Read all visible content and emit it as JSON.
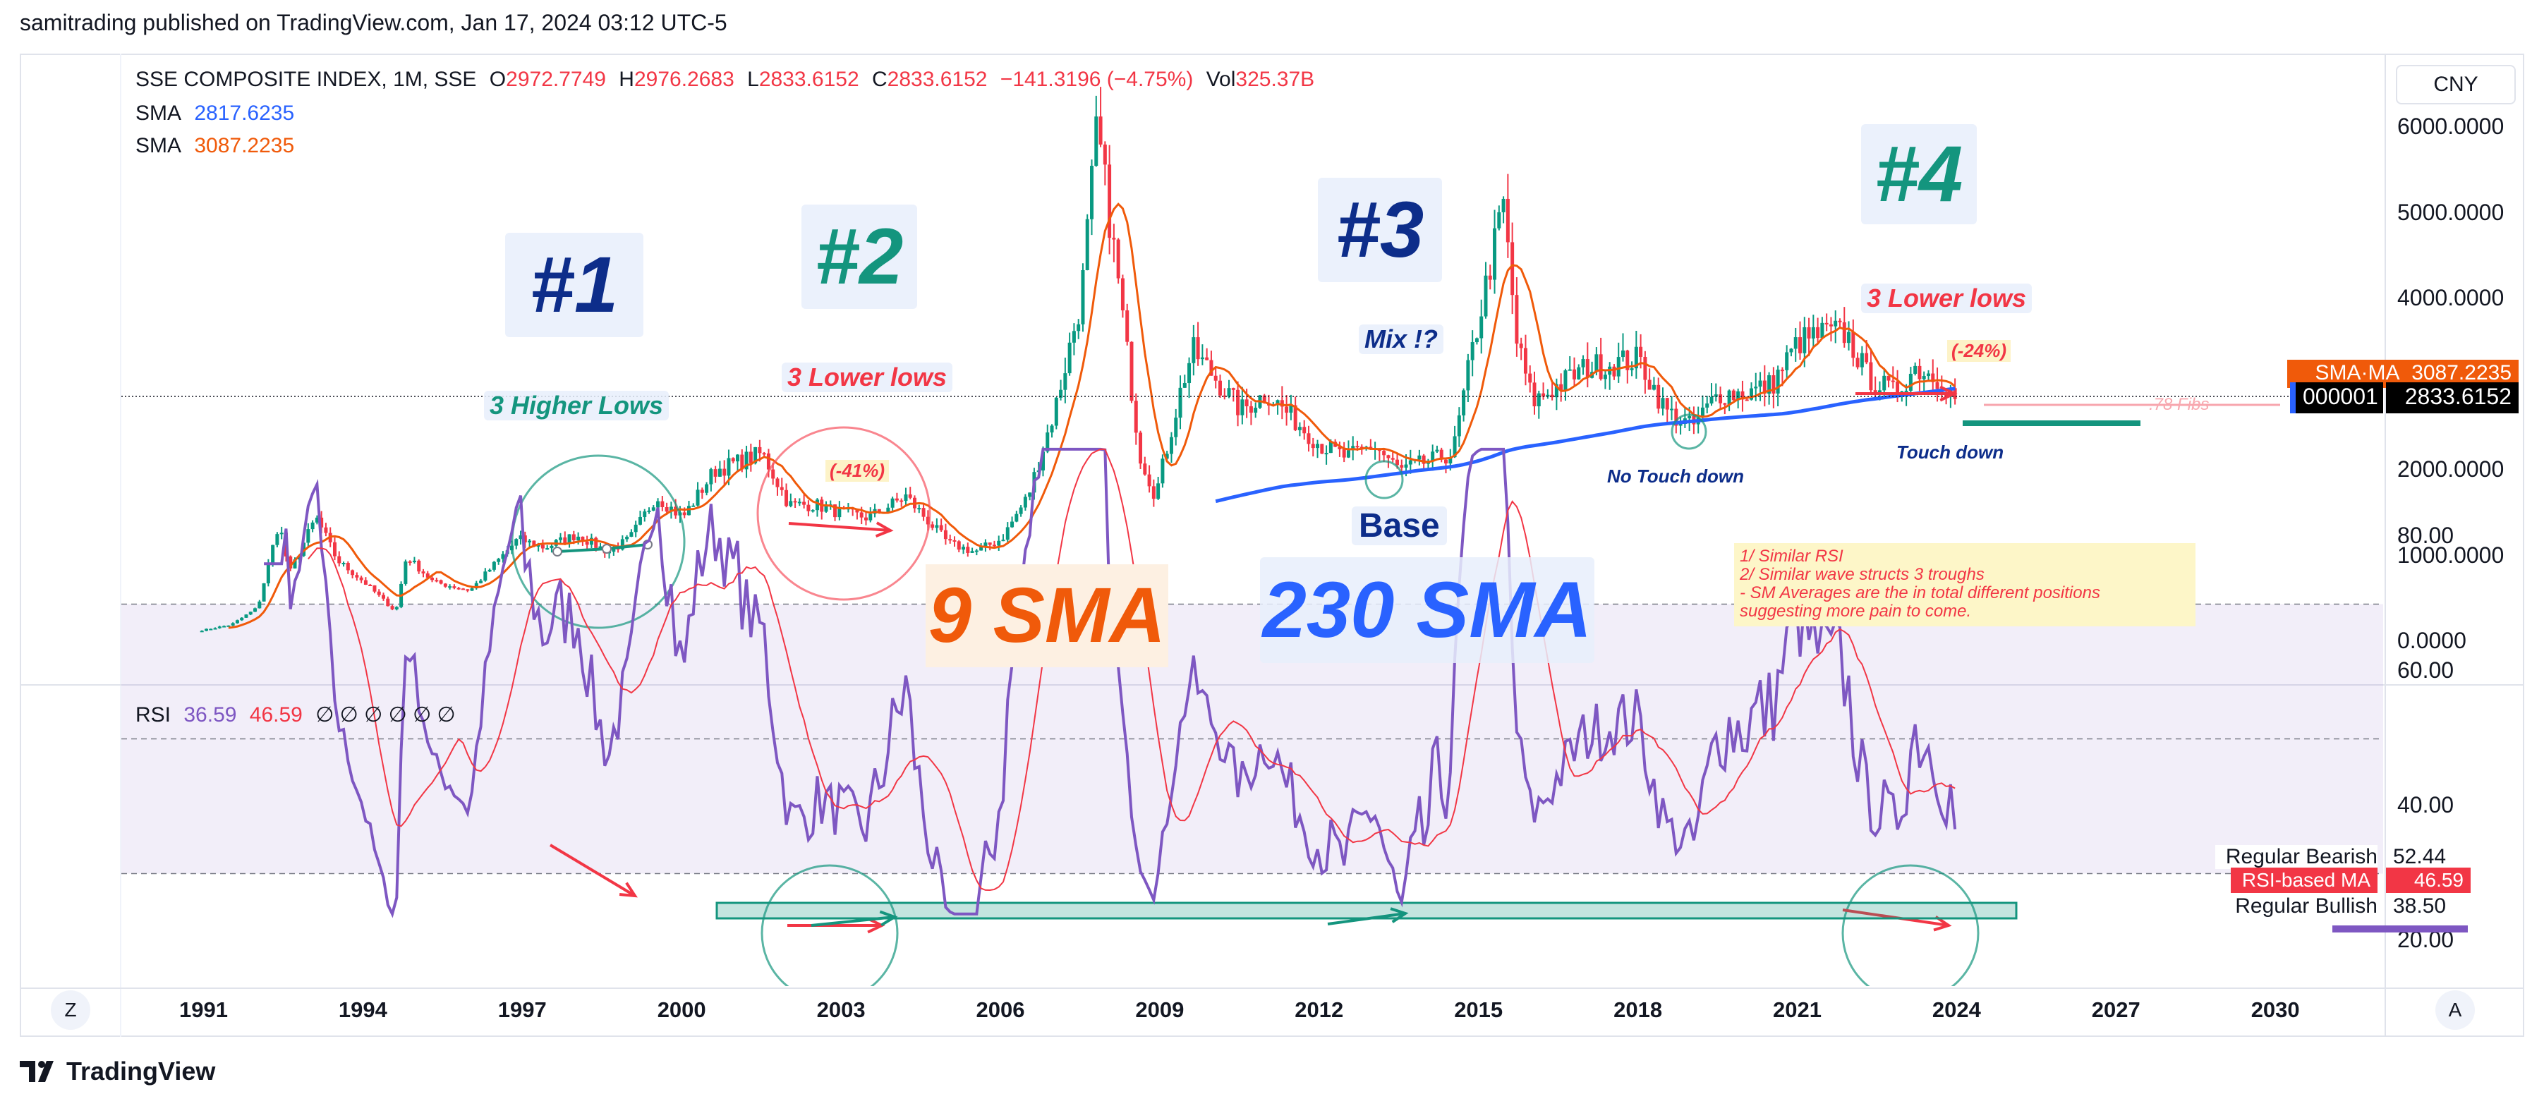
{
  "published": "samitrading published on TradingView.com, Jan 17, 2024 03:12 UTC-5",
  "legend": {
    "symbol": "SSE COMPOSITE INDEX, 1M, SSE",
    "open_label": "O",
    "open": "2972.7749",
    "high_label": "H",
    "high": "2976.2683",
    "low_label": "L",
    "low": "2833.6152",
    "close_label": "C",
    "close": "2833.6152",
    "change": "−141.3196 (−4.75%)",
    "vol_label": "Vol",
    "vol": "325.37B",
    "sma1_label": "SMA",
    "sma1_value": "2817.6235",
    "sma2_label": "SMA",
    "sma2_value": "3087.2235",
    "rsi_label": "RSI",
    "rsi_value": "36.59",
    "rsi_ma_value": "46.59",
    "rsi_extra": "∅ ∅ ∅ ∅ ∅ ∅"
  },
  "currency": "CNY",
  "price_axis": [
    "6000.0000",
    "5000.0000",
    "4000.0000",
    "3000.0000",
    "2000.0000",
    "1000.0000",
    "0.0000"
  ],
  "rsi_axis": [
    "80.00",
    "60.00",
    "40.00",
    "20.00"
  ],
  "time_axis": [
    "1991",
    "1994",
    "1997",
    "2000",
    "2003",
    "2006",
    "2009",
    "2012",
    "2015",
    "2018",
    "2021",
    "2024",
    "2027",
    "2030"
  ],
  "price_tags": {
    "sma_ma_label": "SMA·MA",
    "sma_ma_value": "3087.2235",
    "symbol_code": "000001",
    "last_price": "2833.6152"
  },
  "rsi_tags": {
    "bearish_label": "Regular Bearish",
    "bearish_value": "52.44",
    "rsi_ma_label": "RSI-based MA",
    "rsi_ma_value": "46.59",
    "bullish_label": "Regular Bullish",
    "bullish_value": "38.50"
  },
  "buttons": {
    "z": "Z",
    "a": "A"
  },
  "annotations": {
    "n1": "#1",
    "n2": "#2",
    "n3": "#3",
    "n4": "#4",
    "higher_lows": "3 Higher Lows",
    "lower_lows_1": "3 Lower lows",
    "lower_lows_2": "3 Lower lows",
    "drop_41": "(-41%)",
    "drop_24": "(-24%)",
    "mix": "Mix  !?",
    "base": "Base",
    "sma9": "9 SMA",
    "sma230": "230 SMA",
    "no_touch": "No Touch down",
    "touch": "Touch down",
    "fibs": ".78 Fibs",
    "note": [
      "1/ Similar RSI",
      "2/ Similar wave structs 3 troughs",
      "- SM Averages are the in total different positions",
      "suggesting more pain to come."
    ]
  },
  "brand": "TradingView",
  "colors": {
    "up": "#089981",
    "down": "#f23645",
    "sma_fast": "#f05a0a",
    "sma_slow": "#2962ff",
    "rsi": "#7e57c2",
    "rsi_ma": "#f23645",
    "navy": "#0d2d8a",
    "teal": "#14957e"
  },
  "chart_data": {
    "type": "line",
    "title": "SSE COMPOSITE INDEX, 1M, SSE",
    "x_range": [
      1990.8,
      2032
    ],
    "price_ylim": [
      -300,
      6500
    ],
    "price_ticks": [
      0,
      1000,
      2000,
      3000,
      4000,
      5000,
      6000
    ],
    "series": [
      {
        "name": "SSE COMPOSITE INDEX",
        "x": [
          1990.9,
          1991.5,
          1992.0,
          1992.4,
          1992.6,
          1992.9,
          1993.1,
          1993.5,
          1994.0,
          1994.6,
          1994.8,
          1995.3,
          1996.0,
          1996.9,
          1997.4,
          1998.0,
          1998.6,
          1999.0,
          1999.5,
          2000.0,
          2000.6,
          2001.5,
          2002.0,
          2002.5,
          2003.0,
          2003.5,
          2004.2,
          2005.0,
          2005.5,
          2006.0,
          2006.5,
          2007.0,
          2007.5,
          2007.8,
          2008.2,
          2008.6,
          2008.9,
          2009.4,
          2009.6,
          2010.0,
          2010.5,
          2011.0,
          2011.5,
          2012.0,
          2012.5,
          2013.0,
          2013.5,
          2014.0,
          2014.5,
          2014.8,
          2015.2,
          2015.45,
          2015.7,
          2016.0,
          2016.5,
          2017.0,
          2018.0,
          2018.5,
          2019.0,
          2019.5,
          2020.0,
          2020.5,
          2021.0,
          2021.5,
          2021.9,
          2022.3,
          2022.8,
          2023.2,
          2023.6,
          2024.0
        ],
        "y": [
          130,
          200,
          400,
          1400,
          800,
          1200,
          1450,
          950,
          700,
          350,
          1000,
          700,
          600,
          1200,
          1100,
          1250,
          1050,
          1200,
          1700,
          1450,
          2000,
          2200,
          1600,
          1600,
          1500,
          1450,
          1700,
          1150,
          1050,
          1200,
          1700,
          2700,
          4000,
          6000,
          4200,
          2200,
          1700,
          3000,
          3400,
          3100,
          2700,
          2900,
          2600,
          2300,
          2150,
          2300,
          2000,
          2100,
          2200,
          3200,
          4400,
          5100,
          3500,
          2800,
          3000,
          3200,
          3300,
          2700,
          2500,
          2900,
          2900,
          3000,
          3500,
          3600,
          3600,
          3100,
          2900,
          3200,
          3100,
          2834
        ]
      },
      {
        "name": "SMA",
        "value": 3087.2235
      },
      {
        "name": "SMA",
        "value": 2817.6235
      },
      {
        "name": "RSI",
        "value": 36.59
      },
      {
        "name": "RSI-based MA",
        "value": 46.59
      }
    ],
    "rsi_ylim": [
      10,
      100
    ],
    "rsi_ticks": [
      20,
      40,
      60,
      80
    ],
    "rsi_bands": [
      30,
      50,
      70
    ]
  }
}
